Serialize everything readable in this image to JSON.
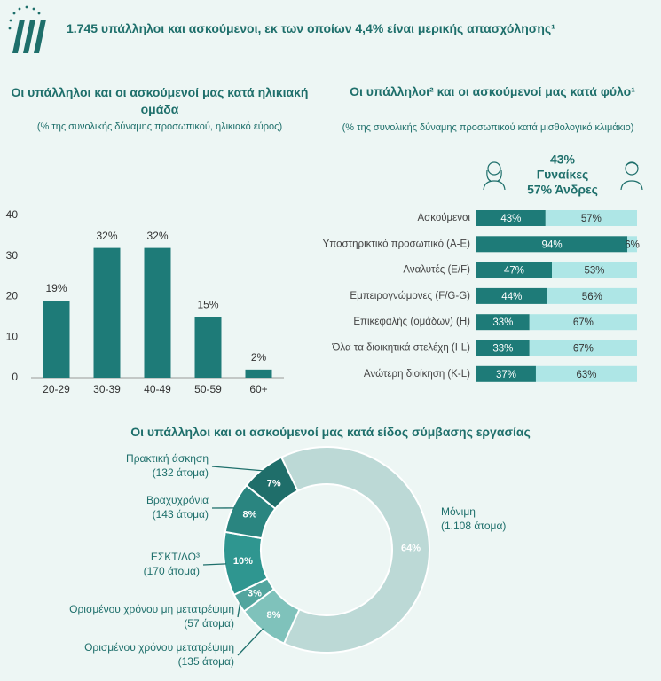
{
  "header": {
    "title": "1.745 υπάλληλοι και ασκούμενοι, εκ των οποίων 4,4% είναι μερικής απασχόλησης¹"
  },
  "chart_data": [
    {
      "type": "bar",
      "title": "Οι υπάλληλοι και οι ασκούμενοί μας κατά ηλικιακή ομάδα",
      "subtitle": "(% της συνολικής δύναμης προσωπικού, ηλικιακό εύρος)",
      "categories": [
        "20-29",
        "30-39",
        "40-49",
        "50-59",
        "60+"
      ],
      "values": [
        19,
        32,
        32,
        15,
        2
      ],
      "value_labels": [
        "19%",
        "32%",
        "32%",
        "15%",
        "2%"
      ],
      "color": "#1e7b78",
      "ylim": [
        0,
        40
      ],
      "yticks": [
        0,
        10,
        20,
        30,
        40
      ]
    },
    {
      "type": "stacked-hbar",
      "title": "Οι υπάλληλοι² και οι ασκούμενοί μας κατά φύλο¹",
      "subtitle": "(% της συνολικής δύναμης προσωπικού κατά μισθολογικό κλιμάκιο)",
      "annotations": [
        "43%",
        "Γυναίκες",
        "57% Άνδρες"
      ],
      "categories": [
        "Ασκούμενοι",
        "Υποστηρικτικό προσωπικό (A-E)",
        "Αναλυτές (E/F)",
        "Εμπειρογνώμονες (F/G-G)",
        "Επικεφαλής (ομάδων) (H)",
        "Όλα τα διοικητικά στελέχη (I-L)",
        "Ανώτερη διοίκηση (K-L)"
      ],
      "series": [
        {
          "color": "#1e7b78",
          "values": [
            43,
            94,
            47,
            44,
            33,
            33,
            37
          ],
          "value_labels": [
            "43%",
            "94%",
            "47%",
            "44%",
            "33%",
            "33%",
            "37%"
          ]
        },
        {
          "color": "#aee6e6",
          "values": [
            57,
            6,
            53,
            56,
            67,
            67,
            63
          ],
          "value_labels": [
            "57%",
            "6%",
            "53%",
            "56%",
            "67%",
            "67%",
            "63%"
          ]
        }
      ],
      "xlim": [
        0,
        100
      ]
    },
    {
      "type": "donut",
      "title": "Οι υπάλληλοι και οι ασκούμενοί μας κατά είδος σύμβασης εργασίας",
      "categories": [
        "Μόνιμη",
        "Ορισμένου χρόνου μετατρέψιμη",
        "Ορισμένου χρόνου μη μετατρέψιμη",
        "ΕΣΚΤ/ΔΟ³",
        "Βραχυχρόνια",
        "Πρακτική άσκηση"
      ],
      "count_labels": [
        "(1.108 άτομα)",
        "(135 άτομα)",
        "(57 άτομα)",
        "(170 άτομα)",
        "(143 άτομα)",
        "(132 άτομα)"
      ],
      "values": [
        64,
        8,
        3,
        10,
        8,
        7
      ],
      "value_labels": [
        "64%",
        "8%",
        "3%",
        "10%",
        "8%",
        "7%"
      ],
      "colors": [
        "#bcd9d6",
        "#7fc2bb",
        "#52a59e",
        "#2f9690",
        "#2a8580",
        "#1f6e6a"
      ]
    }
  ]
}
